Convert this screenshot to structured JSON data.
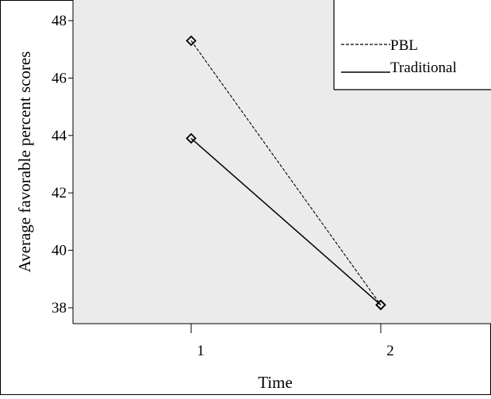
{
  "chart_data": {
    "type": "line",
    "title": "",
    "xlabel": "Time",
    "ylabel": "Average favorable  percent scores",
    "categories": [
      "1",
      "2"
    ],
    "y_ticks": [
      "38",
      "40",
      "42",
      "44",
      "46",
      "48"
    ],
    "ylim": [
      37.4,
      48.2
    ],
    "grid": false,
    "legend_position": "top-right",
    "series": [
      {
        "name": "PBL",
        "values": [
          47.3,
          38.1
        ],
        "line_style": "dashed",
        "marker": "diamond"
      },
      {
        "name": "Traditional",
        "values": [
          43.9,
          38.1
        ],
        "line_style": "solid",
        "marker": "diamond"
      }
    ],
    "colors": {
      "plot_background": "#EBEBEB",
      "axis": "#000000",
      "line": "#000000",
      "page_background": "#FFFFFF"
    }
  }
}
